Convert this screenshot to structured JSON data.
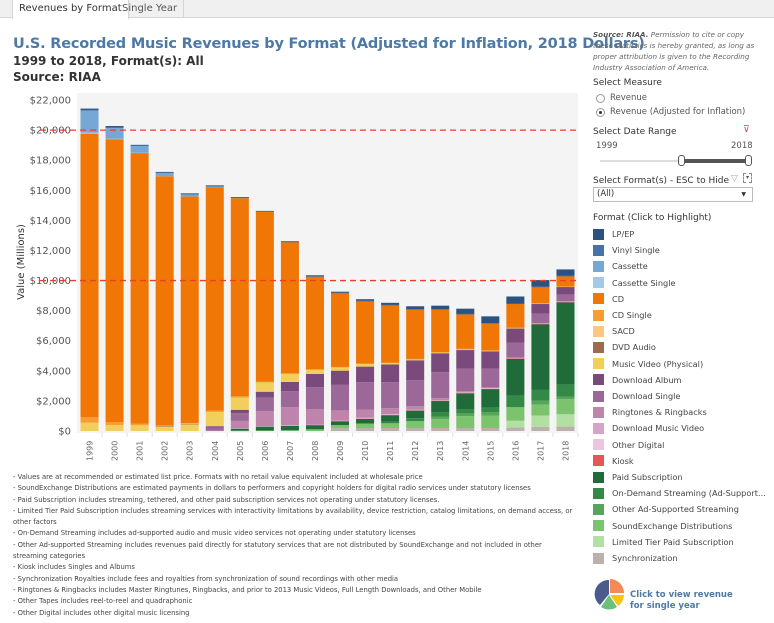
{
  "tabs": [
    {
      "label": "Revenues by Format",
      "active": true
    },
    {
      "label": "Single Year",
      "active": false
    }
  ],
  "header": {
    "title": "U.S. Recorded Music Revenues by Format (Adjusted for Inflation, 2018 Dollars)",
    "subtitle_range": "1999 to 2018, Format(s): All",
    "subtitle_source": "Source: RIAA"
  },
  "sidebar": {
    "source_bold": "Source: RIAA.",
    "source_text": " Permission to cite or copy these statistics is hereby granted, as long as proper attribution is given to the Recording Industry Association of America.",
    "measure_label": "Select Measure",
    "measure_options": [
      {
        "label": "Revenue",
        "selected": false
      },
      {
        "label": "Revenue (Adjusted for Inflation)",
        "selected": true
      }
    ],
    "date_range_label": "Select Date Range",
    "date_start": "1999",
    "date_end": "2018",
    "date_range_selected": {
      "min": 1999,
      "max": 2018
    },
    "format_filter_label": "Select Format(s) - ESC to Hide",
    "format_filter_value": "(All)",
    "legend_title": "Format (Click to Highlight)",
    "pie_link_text": "Click to view revenue for single year"
  },
  "formats": [
    {
      "name": "LP/EP",
      "color": "#2c5282"
    },
    {
      "name": "Vinyl Single",
      "color": "#4672a8"
    },
    {
      "name": "Cassette",
      "color": "#76a8d5"
    },
    {
      "name": "Cassette Single",
      "color": "#a3c8e8"
    },
    {
      "name": "CD",
      "color": "#f07605"
    },
    {
      "name": "CD Single",
      "color": "#f99c32"
    },
    {
      "name": "SACD",
      "color": "#fdc682"
    },
    {
      "name": "DVD Audio",
      "color": "#9c6b4e"
    },
    {
      "name": "Music Video (Physical)",
      "color": "#f1cf5a"
    },
    {
      "name": "Download Album",
      "color": "#7b4a7c"
    },
    {
      "name": "Download Single",
      "color": "#9b6898"
    },
    {
      "name": "Ringtones & Ringbacks",
      "color": "#bf84ac"
    },
    {
      "name": "Download Music Video",
      "color": "#d8a3c8"
    },
    {
      "name": "Other Digital",
      "color": "#ecc6e0"
    },
    {
      "name": "Kiosk",
      "color": "#e45756"
    },
    {
      "name": "Paid Subscription",
      "color": "#1f6b3a"
    },
    {
      "name": "On-Demand Streaming (Ad-Support...",
      "color": "#338a47"
    },
    {
      "name": "Other Ad-Supported Streaming",
      "color": "#57a55b"
    },
    {
      "name": "SoundExchange Distributions",
      "color": "#7cc36e"
    },
    {
      "name": "Limited Tier Paid Subscription",
      "color": "#b2e0a2"
    },
    {
      "name": "Synchronization",
      "color": "#bab0ac"
    }
  ],
  "notes": [
    "- Values are at recommended or estimated list price. Formats with no retail value equivalent included at wholesale price",
    "- SoundExchange Distributions are estimated payments in dollars to performers and copyright holders for digital radio services under statutory licenses",
    "- Paid Subscription includes streaming, tethered, and other paid subscription services not operating under statutory licenses.",
    "- Limited Tier Paid Subscription includes streaming services with interactivity limitations by availability, device restriction, catalog limitations, on demand access, or other factors",
    "- On-Demand Streaming includes ad-supported audio and music video services not operating under statutory licenses",
    "- Other Ad-supported Streaming includes revenues paid directly for statutory services that are not distributed by SoundExchange and not included in other streaming categories",
    "- Kiosk includes Singles and Albums",
    "- Synchronization Royalties include fees and royalties from synchronization of sound recordings with other media",
    "- Ringtones & Ringbacks includes Master Ringtunes, Ringbacks, and prior to 2013 Music Videos, Full Length Downloads, and Other Mobile",
    "- Other Tapes includes reel-to-reel and quadraphonic",
    "- Other Digital includes other digital music licensing"
  ],
  "chart_data": {
    "type": "bar",
    "stacked": true,
    "title": "U.S. Recorded Music Revenues by Format (Adjusted for Inflation, 2018 Dollars)",
    "xlabel": "",
    "ylabel": "Value (Millions)",
    "ylim": [
      0,
      22000
    ],
    "yticks": [
      0,
      2000,
      4000,
      6000,
      8000,
      10000,
      12000,
      14000,
      16000,
      18000,
      20000,
      22000
    ],
    "ytick_labels": [
      "$0",
      "$2,000",
      "$4,000",
      "$6,000",
      "$8,000",
      "$10,000",
      "$12,000",
      "$14,000",
      "$16,000",
      "$18,000",
      "$20,000",
      "$22,000"
    ],
    "reference_lines": [
      10000,
      20000
    ],
    "reference_line_color": "#e8412a",
    "grid": false,
    "legend": "right",
    "categories": [
      "1999",
      "2000",
      "2001",
      "2002",
      "2003",
      "2004",
      "2005",
      "2006",
      "2007",
      "2008",
      "2009",
      "2010",
      "2011",
      "2012",
      "2013",
      "2014",
      "2015",
      "2016",
      "2017",
      "2018"
    ],
    "series": [
      {
        "name": "Synchronization",
        "values": [
          0,
          0,
          0,
          0,
          0,
          0,
          0,
          0,
          0,
          0,
          200,
          200,
          200,
          200,
          200,
          200,
          200,
          230,
          280,
          290
        ]
      },
      {
        "name": "Limited Tier Paid Subscription",
        "values": [
          0,
          0,
          0,
          0,
          0,
          0,
          0,
          0,
          0,
          0,
          0,
          0,
          0,
          0,
          0,
          0,
          0,
          450,
          750,
          820
        ]
      },
      {
        "name": "SoundExchange Distributions",
        "values": [
          0,
          0,
          0,
          0,
          0,
          0,
          20,
          30,
          50,
          110,
          190,
          300,
          310,
          450,
          600,
          790,
          830,
          900,
          720,
          1000
        ]
      },
      {
        "name": "Other Ad-Supported Streaming",
        "values": [
          0,
          0,
          0,
          0,
          0,
          0,
          0,
          0,
          0,
          0,
          0,
          0,
          0,
          0,
          160,
          180,
          210,
          0,
          280,
          180
        ]
      },
      {
        "name": "On-Demand Streaming (Ad-Support...",
        "values": [
          0,
          0,
          0,
          0,
          0,
          0,
          0,
          0,
          0,
          0,
          0,
          0,
          100,
          200,
          280,
          290,
          310,
          760,
          700,
          790
        ]
      },
      {
        "name": "Paid Subscription",
        "values": [
          0,
          0,
          0,
          0,
          0,
          0,
          140,
          260,
          290,
          260,
          240,
          300,
          440,
          520,
          770,
          1050,
          1240,
          2470,
          4370,
          5480
        ]
      },
      {
        "name": "Kiosk",
        "values": [
          0,
          0,
          0,
          0,
          0,
          0,
          0,
          0,
          0,
          30,
          30,
          30,
          30,
          10,
          10,
          10,
          10,
          10,
          10,
          10
        ]
      },
      {
        "name": "Other Digital",
        "values": [
          0,
          0,
          0,
          0,
          0,
          0,
          0,
          0,
          0,
          0,
          0,
          20,
          20,
          20,
          20,
          30,
          30,
          30,
          30,
          30
        ]
      },
      {
        "name": "Download Music Video",
        "values": [
          0,
          0,
          0,
          0,
          0,
          0,
          20,
          30,
          40,
          30,
          30,
          30,
          30,
          20,
          20,
          20,
          20,
          10,
          10,
          10
        ]
      },
      {
        "name": "Ringtones & Ringbacks",
        "values": [
          0,
          0,
          0,
          0,
          0,
          30,
          490,
          990,
          1210,
          1010,
          680,
          550,
          380,
          220,
          120,
          80,
          50,
          30,
          30,
          30
        ]
      },
      {
        "name": "Download Single",
        "values": [
          0,
          0,
          0,
          0,
          0,
          190,
          520,
          900,
          1050,
          1470,
          1720,
          1810,
          1730,
          1730,
          1730,
          1490,
          1240,
          990,
          610,
          420
        ]
      },
      {
        "name": "Download Album",
        "values": [
          0,
          0,
          0,
          0,
          0,
          100,
          220,
          400,
          620,
          880,
          920,
          1040,
          1180,
          1330,
          1260,
          1240,
          1160,
          930,
          650,
          510
        ]
      },
      {
        "name": "Music Video (Physical)",
        "values": [
          550,
          390,
          380,
          270,
          440,
          970,
          860,
          660,
          560,
          300,
          240,
          200,
          120,
          80,
          70,
          70,
          50,
          50,
          40,
          30
        ]
      },
      {
        "name": "DVD Audio",
        "values": [
          0,
          0,
          0,
          30,
          20,
          20,
          10,
          10,
          0,
          0,
          0,
          0,
          0,
          0,
          0,
          0,
          0,
          0,
          0,
          0
        ]
      },
      {
        "name": "SACD",
        "values": [
          0,
          0,
          0,
          40,
          30,
          20,
          10,
          0,
          0,
          0,
          0,
          0,
          0,
          0,
          0,
          0,
          0,
          0,
          0,
          0
        ]
      },
      {
        "name": "CD Single",
        "values": [
          360,
          190,
          100,
          30,
          40,
          20,
          10,
          10,
          10,
          10,
          10,
          10,
          10,
          10,
          10,
          10,
          10,
          0,
          0,
          0
        ]
      },
      {
        "name": "CD",
        "values": [
          18850,
          18820,
          18010,
          16560,
          15050,
          14840,
          13180,
          11300,
          8740,
          6170,
          4920,
          4150,
          3820,
          3300,
          2840,
          2310,
          1800,
          1600,
          1100,
          700
        ]
      },
      {
        "name": "Cassette Single",
        "values": [
          80,
          20,
          10,
          0,
          0,
          0,
          0,
          0,
          0,
          0,
          0,
          0,
          0,
          0,
          0,
          0,
          0,
          0,
          0,
          0
        ]
      },
      {
        "name": "Cassette",
        "values": [
          1460,
          720,
          440,
          210,
          140,
          60,
          20,
          0,
          0,
          0,
          0,
          0,
          0,
          0,
          0,
          0,
          0,
          0,
          0,
          0
        ]
      },
      {
        "name": "Vinyl Single",
        "values": [
          40,
          40,
          40,
          30,
          40,
          40,
          20,
          10,
          10,
          10,
          10,
          10,
          10,
          10,
          10,
          10,
          10,
          10,
          10,
          10
        ]
      },
      {
        "name": "LP/EP",
        "values": [
          90,
          90,
          40,
          50,
          40,
          40,
          30,
          30,
          40,
          70,
          70,
          110,
          140,
          190,
          230,
          350,
          450,
          470,
          440,
          430
        ]
      }
    ]
  }
}
